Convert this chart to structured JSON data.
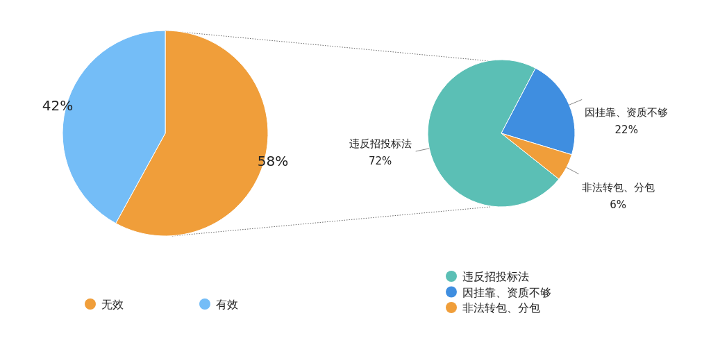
{
  "chart_data": [
    {
      "type": "pie",
      "categories": [
        "无效",
        "有效"
      ],
      "values": [
        58,
        42
      ],
      "colors": [
        "#f09e3a",
        "#74bdf7"
      ],
      "value_labels": [
        "58%",
        "42%"
      ],
      "legend": "bottom"
    },
    {
      "type": "pie",
      "categories": [
        "违反招投标法",
        "因挂靠、资质不够",
        "非法转包、分包"
      ],
      "values": [
        72,
        22,
        6
      ],
      "colors": [
        "#5bbfb5",
        "#3f8ee0",
        "#f09e3a"
      ],
      "value_labels": [
        "72%",
        "22%",
        "6%"
      ],
      "legend": "bottom"
    }
  ]
}
